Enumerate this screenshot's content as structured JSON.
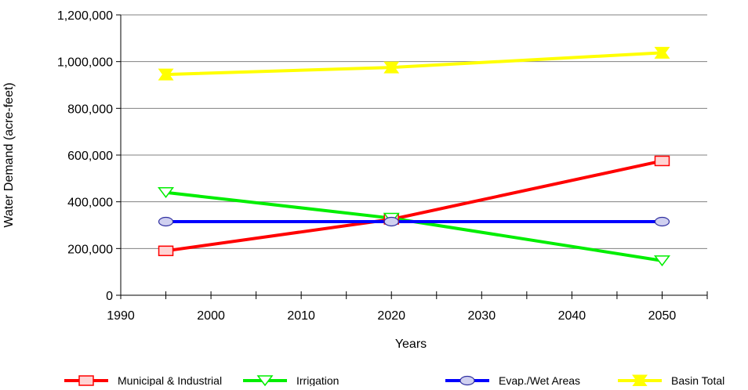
{
  "chart_data": {
    "type": "line",
    "title": "",
    "xlabel": "Years",
    "ylabel": "Water Demand (acre-feet)",
    "xlim": [
      1990,
      2055
    ],
    "ylim": [
      0,
      1200000
    ],
    "x_ticks": [
      1990,
      2000,
      2010,
      2020,
      2030,
      2040,
      2050
    ],
    "y_ticks": [
      0,
      200000,
      400000,
      600000,
      800000,
      1000000,
      1200000
    ],
    "x_tick_labels": [
      "1990",
      "2000",
      "2010",
      "2020",
      "2030",
      "2040",
      "2050"
    ],
    "y_tick_labels": [
      "0",
      "200,000",
      "400,000",
      "600,000",
      "800,000",
      "1,000,000",
      "1,200,000"
    ],
    "grid": "horizontal",
    "legend_position": "bottom",
    "x": [
      1995,
      2020,
      2050
    ],
    "series": [
      {
        "name": "Municipal & Industrial",
        "values": [
          190000,
          325000,
          575000
        ],
        "color": "#ff0000",
        "marker": "square"
      },
      {
        "name": "Irrigation",
        "values": [
          440000,
          330000,
          148000
        ],
        "color": "#00ee00",
        "marker": "triangle-down"
      },
      {
        "name": "Evap./Wet Areas",
        "values": [
          315000,
          315000,
          315000
        ],
        "color": "#0000ff",
        "marker": "circle"
      },
      {
        "name": "Basin Total",
        "values": [
          945000,
          975000,
          1038000
        ],
        "color": "#ffff00",
        "marker": "bowtie"
      }
    ]
  }
}
